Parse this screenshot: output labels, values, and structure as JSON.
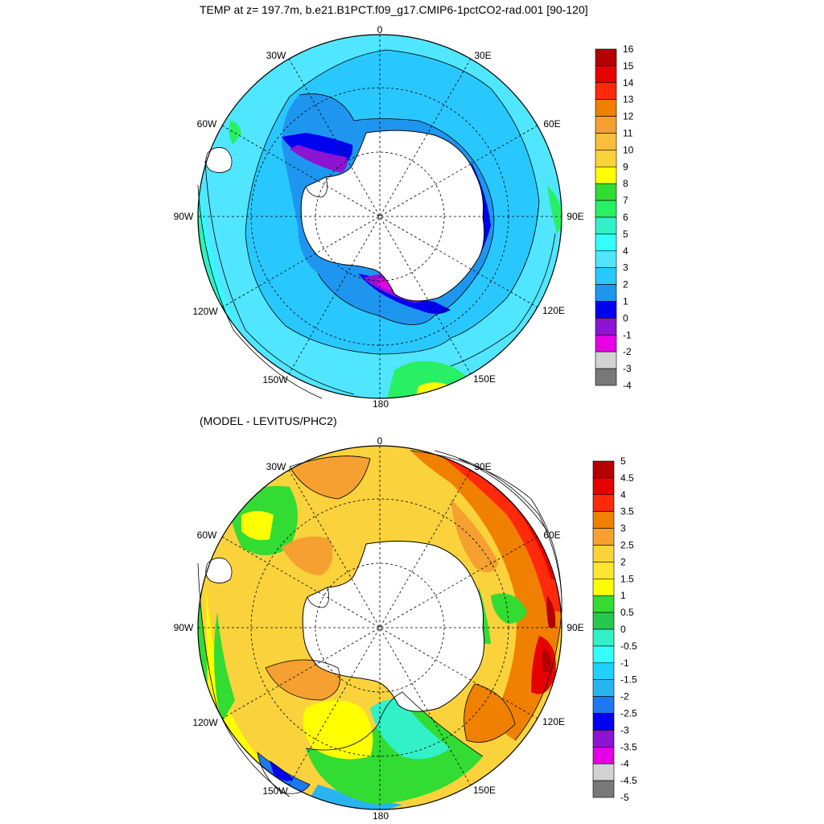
{
  "top_panel": {
    "title": "TEMP at z= 197.7m, b.e21.B1PCT.f09_g17.CMIP6-1pctCO2-rad.001 [90-120]",
    "longitude_labels": {
      "lon_0": "0",
      "lon_30e": "30E",
      "lon_60e": "60E",
      "lon_90e": "90E",
      "lon_120e": "120E",
      "lon_150e": "150E",
      "lon_180": "180",
      "lon_150w": "150W",
      "lon_120w": "120W",
      "lon_90w": "90W",
      "lon_60w": "60W",
      "lon_30w": "30W"
    },
    "colorbar": {
      "labels": [
        "16",
        "15",
        "14",
        "13",
        "12",
        "11",
        "10",
        "9",
        "8",
        "7",
        "6",
        "5",
        "4",
        "3",
        "2",
        "1",
        "0",
        "-1",
        "-2",
        "-3",
        "-4"
      ],
      "colors": [
        "#b40000",
        "#e60000",
        "#ff2a0a",
        "#f08000",
        "#f5a030",
        "#f8be3c",
        "#fad23c",
        "#ffff00",
        "#32dc32",
        "#28f064",
        "#32f0c8",
        "#32ffff",
        "#50e6ff",
        "#28c8ff",
        "#1e96f0",
        "#0000f0",
        "#8c14d2",
        "#e600e6",
        "#d2d2d2",
        "#787878"
      ]
    }
  },
  "bottom_panel": {
    "title": "(MODEL - LEVITUS/PHC2)",
    "longitude_labels": {
      "lon_0": "0",
      "lon_30e": "30E",
      "lon_60e": "60E",
      "lon_90e": "90E",
      "lon_120e": "120E",
      "lon_150e": "150E",
      "lon_180": "180",
      "lon_150w": "150W",
      "lon_120w": "120W",
      "lon_90w": "90W",
      "lon_60w": "60W",
      "lon_30w": "30W"
    },
    "colorbar": {
      "labels": [
        "5",
        "4.5",
        "4",
        "3.5",
        "3",
        "2.5",
        "2",
        "1.5",
        "1",
        "0.5",
        "0",
        "-0.5",
        "-1",
        "-1.5",
        "-2",
        "-2.5",
        "-3",
        "-3.5",
        "-4",
        "-4.5",
        "-5"
      ],
      "colors": [
        "#b40000",
        "#e60000",
        "#ff2a0a",
        "#f08000",
        "#f5a030",
        "#fad23c",
        "#ffe632",
        "#ffff00",
        "#32dc32",
        "#28c850",
        "#32f0c8",
        "#32ffff",
        "#1ed2ff",
        "#28b4f0",
        "#1e78f0",
        "#0000f0",
        "#8c14d2",
        "#e600e6",
        "#d2d2d2",
        "#787878"
      ]
    }
  }
}
